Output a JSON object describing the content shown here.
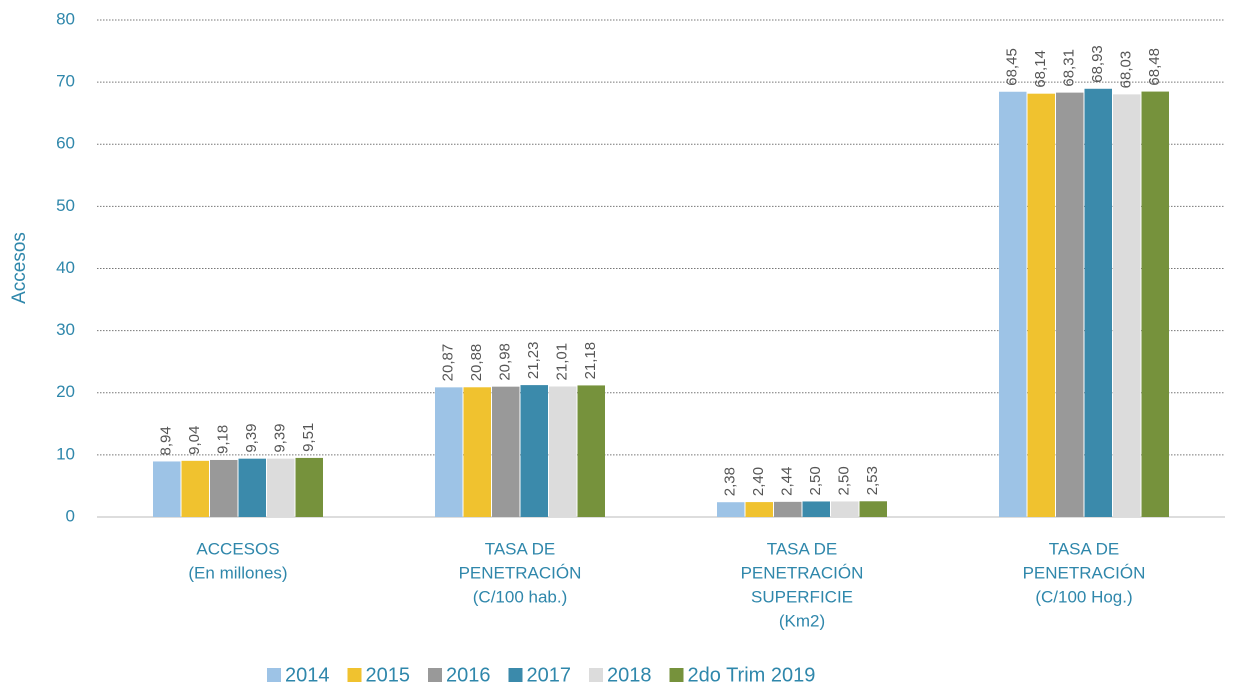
{
  "chart_data": {
    "type": "bar",
    "y_label": "Accesos",
    "categories": [
      [
        "ACCESOS",
        "(En millones)"
      ],
      [
        "TASA DE",
        "PENETRACIÓN",
        "(C/100 hab.)"
      ],
      [
        "TASA DE",
        "PENETRACIÓN",
        "SUPERFICIE",
        "(Km2)"
      ],
      [
        "TASA DE",
        "PENETRACIÓN",
        "(C/100 Hog.)"
      ]
    ],
    "series": [
      {
        "name": "2014",
        "color": "#9dc3e6",
        "values": [
          8.94,
          20.87,
          2.38,
          68.45
        ],
        "value_labels": [
          "8,94",
          "20,87",
          "2,38",
          "68,45"
        ]
      },
      {
        "name": "2015",
        "color": "#f0c22f",
        "values": [
          9.04,
          20.88,
          2.4,
          68.14
        ],
        "value_labels": [
          "9,04",
          "20,88",
          "2,40",
          "68,14"
        ]
      },
      {
        "name": "2016",
        "color": "#999999",
        "values": [
          9.18,
          20.98,
          2.44,
          68.31
        ],
        "value_labels": [
          "9,18",
          "20,98",
          "2,44",
          "68,31"
        ]
      },
      {
        "name": "2017",
        "color": "#3b8aab",
        "values": [
          9.39,
          21.23,
          2.5,
          68.93
        ],
        "value_labels": [
          "9,39",
          "21,23",
          "2,50",
          "68,93"
        ]
      },
      {
        "name": "2018",
        "color": "#dcdcdc",
        "values": [
          9.39,
          21.01,
          2.5,
          68.03
        ],
        "value_labels": [
          "9,39",
          "21,01",
          "2,50",
          "68,03"
        ]
      },
      {
        "name": "2do Trim 2019",
        "color": "#76923c",
        "values": [
          9.51,
          21.18,
          2.53,
          68.48
        ],
        "value_labels": [
          "9,51",
          "21,18",
          "2,53",
          "68,48"
        ]
      }
    ],
    "ylim": [
      0,
      80
    ],
    "yticks": [
      0,
      10,
      20,
      30,
      40,
      50,
      60,
      70,
      80
    ],
    "grid": true,
    "legend": "bottom"
  }
}
